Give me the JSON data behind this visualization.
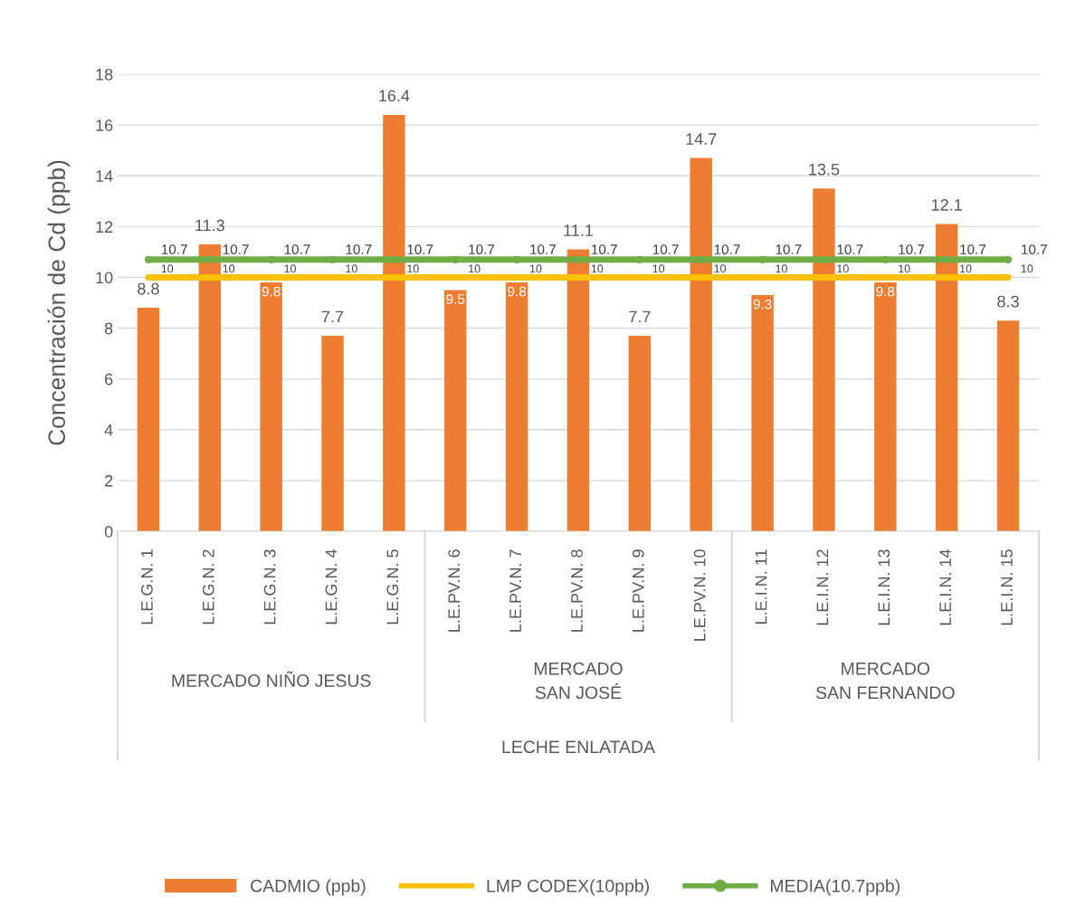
{
  "chart_data": {
    "type": "bar",
    "ylabel": "Concentración de Cd (ppb)",
    "categories": [
      "L.E.G.N. 1",
      "L.E.G.N. 2",
      "L.E.G.N. 3",
      "L.E.G.N. 4",
      "L.E.G.N. 5",
      "L.E.PV.N. 6",
      "L.E.PV.N. 7",
      "L.E.PV.N. 8",
      "L.E.PV.N. 9",
      "L.E.PV.N. 10",
      "L.E.I.N. 11",
      "L.E.I.N. 12",
      "L.E.I.N. 13",
      "L.E.I.N. 14",
      "L.E.I.N. 15"
    ],
    "series": [
      {
        "name": "CADMIO (ppb)",
        "color": "#ed7d31",
        "values": [
          8.8,
          11.3,
          9.8,
          7.7,
          16.4,
          9.5,
          9.8,
          11.1,
          7.7,
          14.7,
          9.3,
          13.5,
          9.8,
          12.1,
          8.3
        ]
      },
      {
        "name": "LMP CODEX(10ppb)",
        "type": "line",
        "color": "#ffc000",
        "values": [
          10,
          10,
          10,
          10,
          10,
          10,
          10,
          10,
          10,
          10,
          10,
          10,
          10,
          10,
          10
        ]
      },
      {
        "name": "MEDIA(10.7ppb)",
        "type": "line",
        "color": "#70ad47",
        "marker": "circle",
        "values": [
          10.7,
          10.7,
          10.7,
          10.7,
          10.7,
          10.7,
          10.7,
          10.7,
          10.7,
          10.7,
          10.7,
          10.7,
          10.7,
          10.7,
          10.7
        ]
      }
    ],
    "annotations": [
      "MERCADO NIÑO JESUS",
      "MERCADO\nSAN JOSÉ",
      "MERCADO\nSAN FERNANDO",
      "LECHE ENLATADA"
    ],
    "ylim": [
      0,
      18
    ],
    "yticks": [
      0,
      2,
      4,
      6,
      8,
      10,
      12,
      14,
      16,
      18
    ],
    "grid": "y",
    "legend": "bottom",
    "data_labels": true
  }
}
